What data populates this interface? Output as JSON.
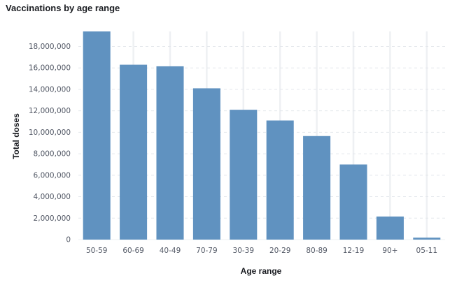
{
  "chart_data": {
    "type": "bar",
    "title": "Vaccinations by age range",
    "xlabel": "Age range",
    "ylabel": "Total doses",
    "categories": [
      "50-59",
      "60-69",
      "40-49",
      "70-79",
      "30-39",
      "20-29",
      "80-89",
      "12-19",
      "90+",
      "05-11"
    ],
    "values": [
      19400000,
      16300000,
      16150000,
      14100000,
      12100000,
      11100000,
      9650000,
      7000000,
      2150000,
      180000
    ],
    "yticks": [
      "0",
      "2,000,000",
      "4,000,000",
      "6,000,000",
      "8,000,000",
      "10,000,000",
      "12,000,000",
      "14,000,000",
      "16,000,000",
      "18,000,000"
    ],
    "ylim": [
      0,
      19400000
    ],
    "grid": true,
    "bar_color": "#6092c0"
  }
}
